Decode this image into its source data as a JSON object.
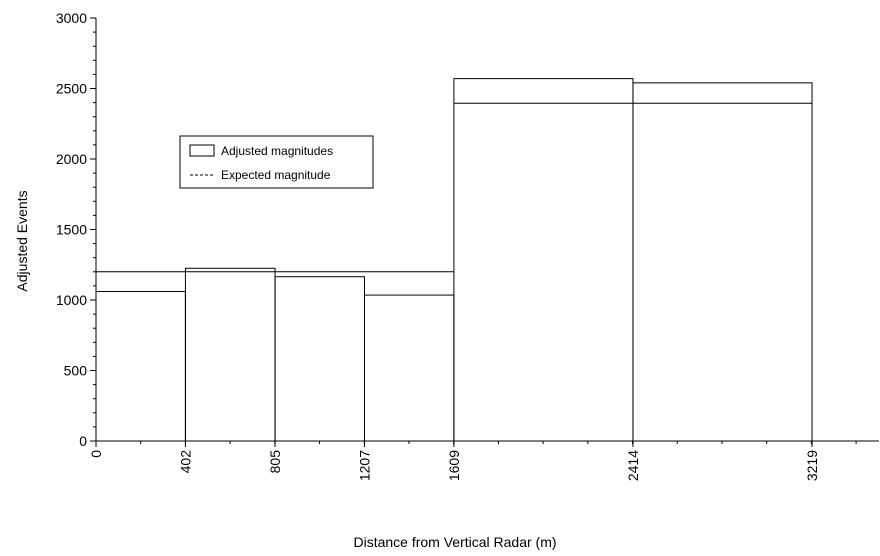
{
  "chart_data": {
    "type": "bar",
    "xlabel": "Distance from Vertical Radar (m)",
    "ylabel": "Adjusted Events",
    "ylim": [
      0,
      3000
    ],
    "xlim": [
      0,
      3520
    ],
    "grid": false,
    "legend_position": "left",
    "x_ticks": [
      0,
      402,
      805,
      1207,
      1609,
      2414,
      3219
    ],
    "x_tick_labels": [
      "0",
      "402",
      "805",
      "1207",
      "1609",
      "2414",
      "3219"
    ],
    "y_ticks": [
      0,
      500,
      1000,
      1500,
      2000,
      2500,
      3000
    ],
    "y_tick_labels": [
      "0",
      "500",
      "1000",
      "1500",
      "2000",
      "2500",
      "3000"
    ],
    "legend": {
      "adjusted_label": "Adjusted magnitudes",
      "expected_label": "Expected magnitude"
    },
    "series": [
      {
        "name": "Adjusted magnitudes",
        "bins": [
          {
            "x0": 0,
            "x1": 402,
            "value": 1060
          },
          {
            "x0": 402,
            "x1": 805,
            "value": 1225
          },
          {
            "x0": 805,
            "x1": 1207,
            "value": 1165
          },
          {
            "x0": 1207,
            "x1": 1609,
            "value": 1035
          },
          {
            "x0": 1609,
            "x1": 2414,
            "value": 2570
          },
          {
            "x0": 2414,
            "x1": 3219,
            "value": 2540
          }
        ]
      },
      {
        "name": "Expected magnitude",
        "bins": [
          {
            "x0": 0,
            "x1": 1609,
            "value": 1200
          },
          {
            "x0": 1609,
            "x1": 3219,
            "value": 2395
          }
        ]
      }
    ]
  }
}
